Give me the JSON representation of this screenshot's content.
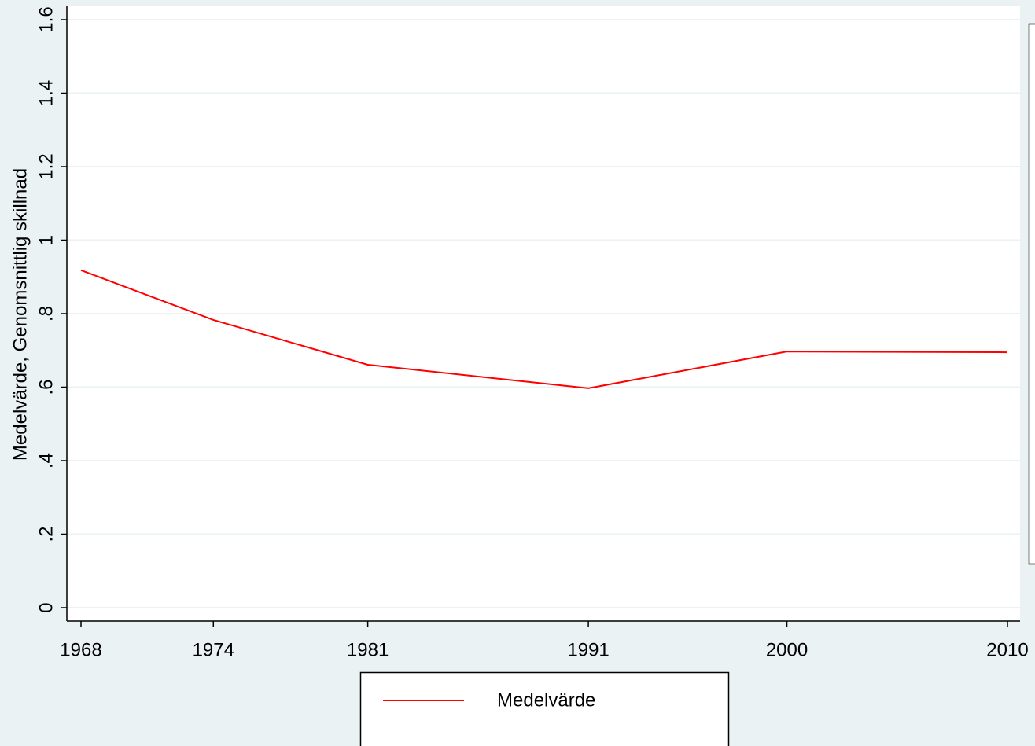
{
  "chart_data": {
    "type": "line",
    "ylabel": "Medelvärde, Genomsnittlig skillnad",
    "x": [
      1968,
      1974,
      1981,
      1991,
      2000,
      2010
    ],
    "series": [
      {
        "name": "Medelvärde",
        "color": "#ff0000",
        "values": [
          0.918,
          0.783,
          0.661,
          0.597,
          0.697,
          0.695
        ]
      }
    ],
    "xlim": [
      1968,
      2010
    ],
    "xticks": [
      1968,
      1974,
      1981,
      1991,
      2000,
      2010
    ],
    "ylim": [
      0,
      1.6
    ],
    "yticks": [
      0,
      {
        "value": 0.2,
        "label": ".2"
      },
      {
        "value": 0.4,
        "label": ".4"
      },
      {
        "value": 0.6,
        "label": ".6"
      },
      {
        "value": 0.8,
        "label": ".8"
      },
      1,
      1.2,
      1.4,
      1.6
    ],
    "grid": true
  }
}
